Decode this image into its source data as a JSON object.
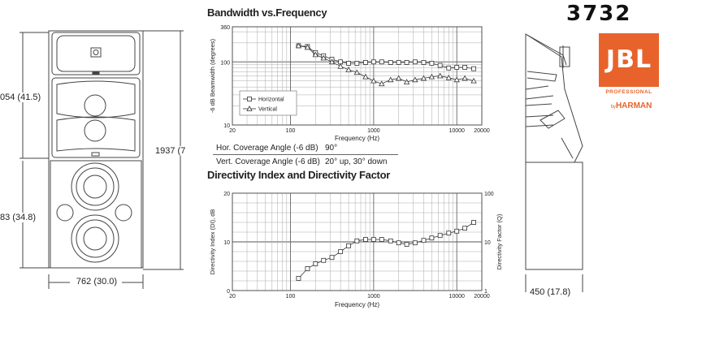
{
  "brand": {
    "model": "3732",
    "logo_text": "JBL",
    "professional": "PROFESSIONAL",
    "by": "by",
    "harman": "HARMAN",
    "brand_color": "#e8632b"
  },
  "front_view": {
    "upper_height": "054 (41.5)",
    "lower_height": "83 (34.8)",
    "total_height": "1937 (7",
    "width": "762 (30.0)"
  },
  "side_view": {
    "depth": "450 (17.8)"
  },
  "bandwidth_chart": {
    "title": "Bandwidth vs.Frequency",
    "ylabel": "-6 dB Beamwidth (degrees)",
    "xlabel": "Frequency (Hz)",
    "y_ticks": [
      "360",
      "100",
      "10"
    ],
    "x_ticks": [
      "20",
      "100",
      "1000",
      "10000",
      "20000"
    ],
    "legend": [
      "Horizontal",
      "Vertical"
    ]
  },
  "coverage": {
    "rows": [
      {
        "label": "Hor. Coverage Angle (-6 dB)",
        "value": "90°"
      },
      {
        "label": "Vert. Coverage Angle (-6 dB)",
        "value": "20° up, 30° down"
      }
    ]
  },
  "directivity_chart": {
    "title": "Directivity Index and Directivity Factor",
    "ylabel": "Directivity Index (DI), dB",
    "y2label": "Directivity Factor (Q)",
    "xlabel": "Frequency (Hz)",
    "y_ticks": [
      "20",
      "10",
      "0"
    ],
    "y2_ticks": [
      "100",
      "10",
      "1"
    ],
    "x_ticks": [
      "20",
      "100",
      "1000",
      "10000",
      "20000"
    ]
  },
  "chart_data": [
    {
      "type": "line",
      "title": "Bandwidth vs.Frequency",
      "xlabel": "Frequency (Hz)",
      "ylabel": "-6 dB Beamwidth (degrees)",
      "x_scale": "log",
      "y_scale": "log",
      "xlim": [
        20,
        20000
      ],
      "ylim": [
        10,
        360
      ],
      "grid": true,
      "legend": "bottom-left",
      "series": [
        {
          "name": "Horizontal",
          "marker": "square",
          "x": [
            125,
            160,
            200,
            250,
            315,
            400,
            500,
            630,
            800,
            1000,
            1250,
            1600,
            2000,
            2500,
            3150,
            4000,
            5000,
            6300,
            8000,
            10000,
            12500,
            16000
          ],
          "y": [
            180,
            175,
            140,
            125,
            110,
            100,
            95,
            95,
            98,
            100,
            100,
            98,
            98,
            98,
            100,
            98,
            95,
            88,
            80,
            82,
            82,
            78
          ]
        },
        {
          "name": "Vertical",
          "marker": "triangle",
          "x": [
            125,
            160,
            200,
            250,
            315,
            400,
            500,
            630,
            800,
            1000,
            1250,
            1600,
            2000,
            2500,
            3150,
            4000,
            5000,
            6300,
            8000,
            10000,
            12500,
            16000
          ],
          "y": [
            180,
            170,
            130,
            115,
            100,
            85,
            75,
            68,
            58,
            50,
            45,
            52,
            55,
            48,
            52,
            55,
            58,
            60,
            56,
            52,
            55,
            50
          ]
        }
      ]
    },
    {
      "type": "line",
      "title": "Directivity Index and Directivity Factor",
      "xlabel": "Frequency (Hz)",
      "ylabel": "Directivity Index (DI), dB",
      "y2label": "Directivity Factor (Q)",
      "x_scale": "log",
      "xlim": [
        20,
        20000
      ],
      "ylim": [
        0,
        20
      ],
      "y2lim": [
        1,
        100
      ],
      "grid": true,
      "series": [
        {
          "marker": "square",
          "x": [
            125,
            160,
            200,
            250,
            315,
            400,
            500,
            630,
            800,
            1000,
            1250,
            1600,
            2000,
            2500,
            3150,
            4000,
            5000,
            6300,
            8000,
            10000,
            12500,
            16000
          ],
          "y": [
            2.5,
            4.5,
            5.5,
            6.2,
            6.8,
            8.0,
            9.2,
            10.2,
            10.5,
            10.5,
            10.5,
            10.2,
            9.8,
            9.5,
            9.8,
            10.3,
            10.8,
            11.3,
            11.8,
            12.2,
            12.8,
            14.0
          ]
        }
      ]
    }
  ]
}
